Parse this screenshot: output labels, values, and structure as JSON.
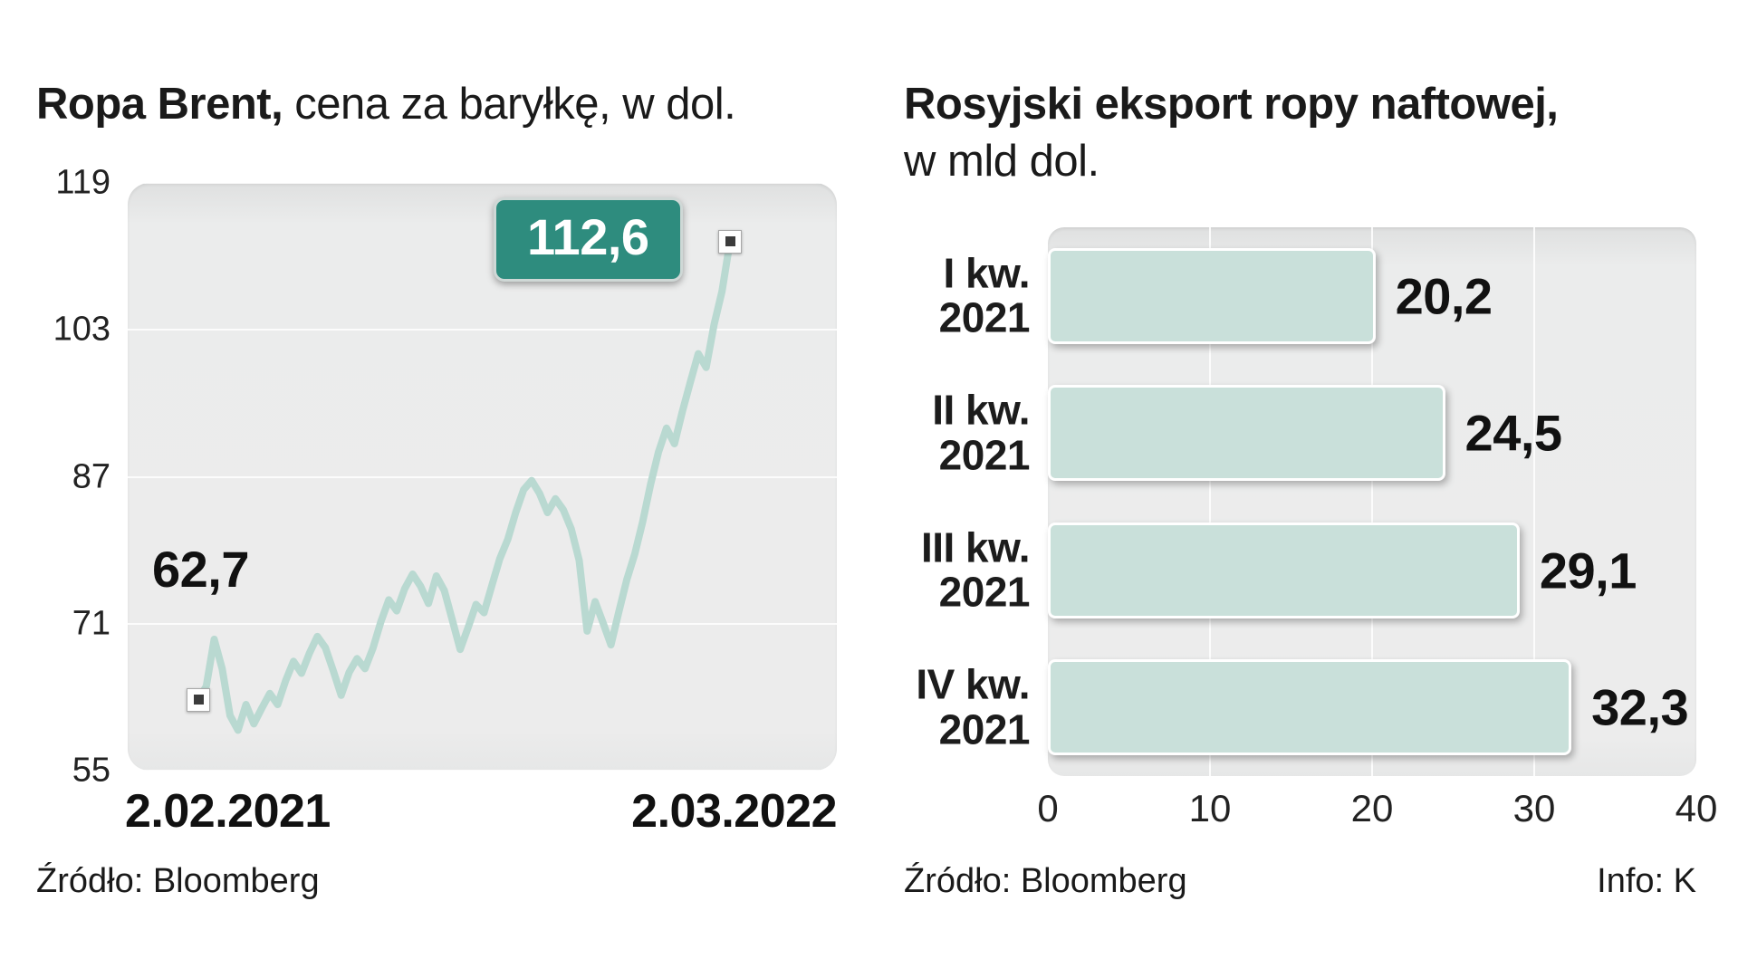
{
  "colors": {
    "accent_teal": "#2e8c7e",
    "line_mint": "#b9d9d1",
    "bar_fill": "#c9e0da",
    "plot_background": "#ececec",
    "text": "#1a1a1a"
  },
  "left": {
    "title_bold": "Ropa Brent,",
    "title_rest": " cena za baryłkę, w dol.",
    "start_label": "62,7",
    "end_badge": "112,6",
    "x_left": "2.02.2021",
    "x_right": "2.03.2022",
    "source": "Źródło: Bloomberg"
  },
  "right": {
    "title_bold": "Rosyjski eksport ropy naftowej,",
    "title_sub": "w mld dol.",
    "source": "Źródło: Bloomberg",
    "info": "Info: K"
  },
  "chart_data": [
    {
      "type": "line",
      "title": "Ropa Brent, cena za baryłkę, w dol.",
      "ylim": [
        55,
        119
      ],
      "yticks": [
        119,
        103,
        87,
        71,
        55
      ],
      "x_range": [
        "2.02.2021",
        "2.03.2022"
      ],
      "start_value": 62.7,
      "end_value": 112.6,
      "annotations": [
        {
          "point": "start",
          "text": "62,7"
        },
        {
          "point": "end",
          "text": "112,6"
        }
      ],
      "values": [
        62.7,
        64.2,
        69.3,
        66.1,
        61.0,
        59.4,
        62.2,
        60.1,
        61.8,
        63.4,
        62.2,
        64.8,
        66.9,
        65.6,
        67.8,
        69.6,
        68.4,
        65.9,
        63.2,
        65.7,
        67.2,
        66.1,
        68.3,
        71.2,
        73.6,
        72.4,
        74.8,
        76.4,
        75.1,
        73.2,
        76.2,
        74.6,
        71.4,
        68.2,
        70.6,
        73.1,
        72.2,
        75.2,
        78.1,
        80.2,
        83.1,
        85.6,
        86.6,
        85.2,
        83.1,
        84.6,
        83.4,
        81.3,
        77.9,
        70.2,
        73.4,
        71.1,
        68.7,
        72.3,
        75.8,
        78.6,
        82.1,
        86.2,
        89.7,
        92.3,
        90.6,
        94.1,
        97.3,
        100.4,
        98.9,
        103.6,
        107.2,
        112.6
      ],
      "grid": "horizontal",
      "legend": false,
      "source": "Źródło: Bloomberg"
    },
    {
      "type": "bar",
      "orientation": "horizontal",
      "title": "Rosyjski eksport ropy naftowej, w mld dol.",
      "categories": [
        "I kw. 2021",
        "II kw. 2021",
        "III kw. 2021",
        "IV kw. 2021"
      ],
      "values": [
        20.2,
        24.5,
        29.1,
        32.3
      ],
      "value_labels": [
        "20,2",
        "24,5",
        "29,1",
        "32,3"
      ],
      "xlim": [
        0,
        40
      ],
      "xticks": [
        0,
        10,
        20,
        30,
        40
      ],
      "grid": "vertical",
      "legend": false,
      "source": "Źródło: Bloomberg"
    }
  ]
}
